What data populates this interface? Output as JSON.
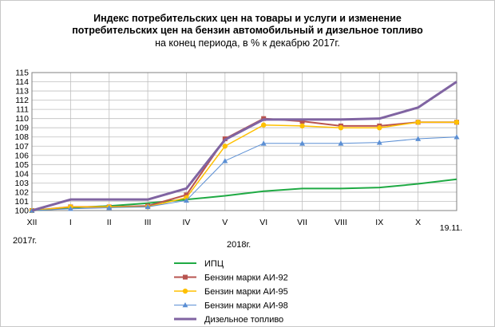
{
  "chart_data": {
    "type": "line",
    "title": [
      "Индекс потребительских цен на товары и услуги и изменение",
      "потребительских цен на бензин автомобильный  и дизельное топливо",
      "на конец периода, в % к декабрю 2017г."
    ],
    "x": [
      "XII",
      "I",
      "II",
      "III",
      "IV",
      "V",
      "VI",
      "VII",
      "VIII",
      "IX",
      "X",
      "19.11."
    ],
    "year_labels": {
      "start": "2017г.",
      "mid": "2018г."
    },
    "ylim": [
      100,
      115
    ],
    "yticks": [
      100,
      101,
      102,
      103,
      104,
      105,
      106,
      107,
      108,
      109,
      110,
      111,
      112,
      113,
      114,
      115
    ],
    "grid": true,
    "legend_position": "bottom",
    "series": [
      {
        "name": "ИПЦ",
        "color": "#1faa44",
        "marker": "none",
        "width": 2,
        "values": [
          100,
          100.3,
          100.5,
          100.8,
          101.2,
          101.6,
          102.1,
          102.4,
          102.4,
          102.5,
          102.9,
          103.4
        ]
      },
      {
        "name": "Бензин марки АИ-92",
        "color": "#b85450",
        "marker": "square",
        "width": 2,
        "values": [
          100,
          100.4,
          100.4,
          100.5,
          101.7,
          107.8,
          110.0,
          109.7,
          109.2,
          109.2,
          109.6,
          109.6
        ]
      },
      {
        "name": "Бензин марки АИ-95",
        "color": "#ffc000",
        "marker": "circle",
        "width": 1.5,
        "values": [
          100,
          100.4,
          100.4,
          100.4,
          101.4,
          107.0,
          109.3,
          109.2,
          109.0,
          109.0,
          109.6,
          109.6
        ]
      },
      {
        "name": "Бензин марки АИ-98",
        "color": "#5b8fd4",
        "marker": "triangle",
        "width": 1,
        "values": [
          100,
          100.2,
          100.3,
          100.4,
          101.1,
          105.4,
          107.3,
          107.3,
          107.3,
          107.4,
          107.8,
          108.0
        ]
      },
      {
        "name": "Дизельное топливо",
        "color": "#8064a2",
        "marker": "none",
        "width": 3,
        "values": [
          100,
          101.2,
          101.2,
          101.2,
          102.4,
          107.7,
          109.9,
          109.9,
          109.9,
          110.0,
          111.2,
          114.0
        ]
      }
    ]
  }
}
